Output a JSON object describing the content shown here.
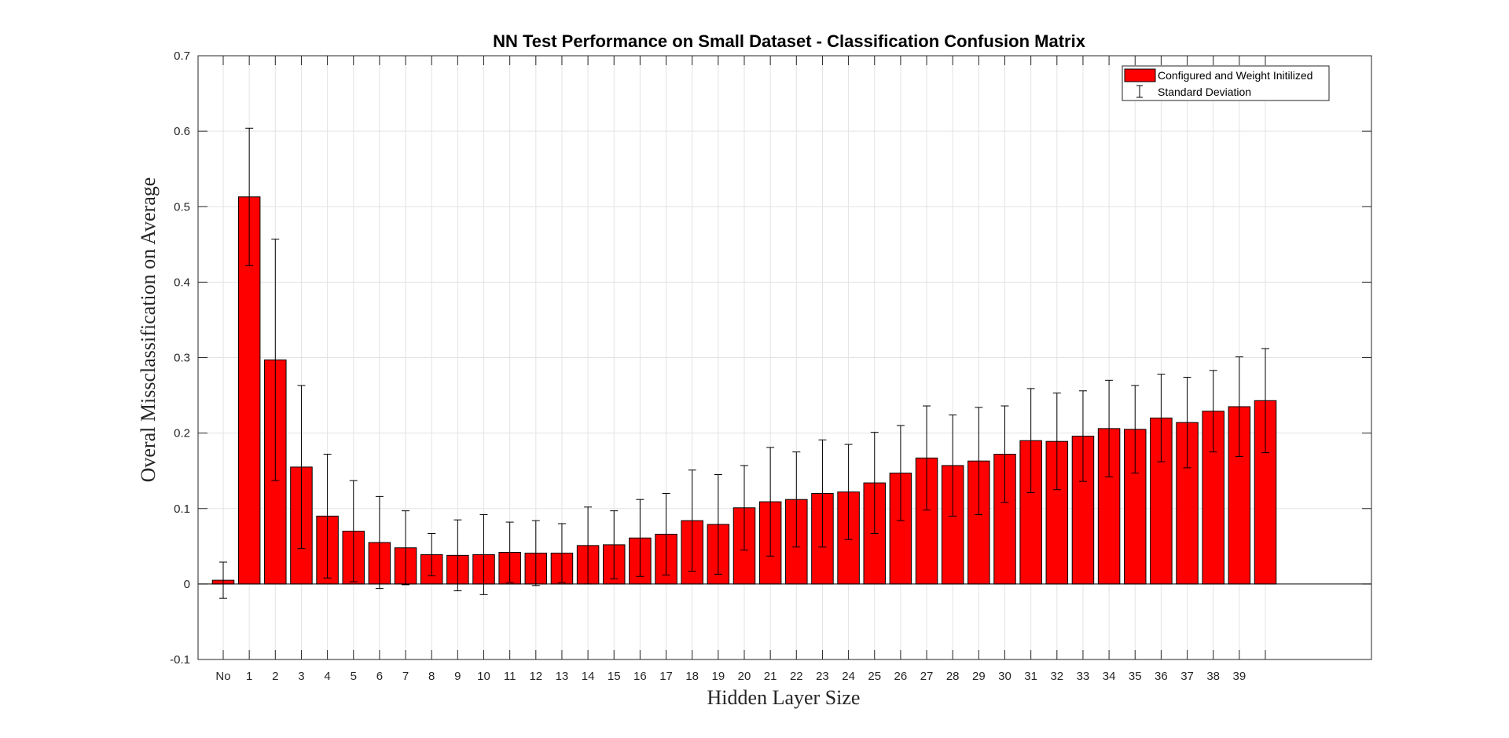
{
  "chart_data": {
    "type": "bar",
    "title": "NN Test Performance on Small Dataset - Classification Confusion Matrix",
    "xlabel": "Hidden Layer Size",
    "ylabel": "Overal Missclassification on Average",
    "ylim": [
      -0.1,
      0.7
    ],
    "yticks": [
      "-0.1",
      "0",
      "0.1",
      "0.2",
      "0.3",
      "0.4",
      "0.5",
      "0.6",
      "0.7"
    ],
    "grid": true,
    "legend_position": "top-right",
    "bar_color": "#ff0000",
    "categories": [
      "No",
      "1",
      "2",
      "3",
      "4",
      "5",
      "6",
      "7",
      "8",
      "9",
      "10",
      "11",
      "12",
      "13",
      "14",
      "15",
      "16",
      "17",
      "18",
      "19",
      "20",
      "21",
      "22",
      "23",
      "24",
      "25",
      "26",
      "27",
      "28",
      "29",
      "30",
      "31",
      "32",
      "33",
      "34",
      "35",
      "36",
      "37",
      "38",
      "39",
      ""
    ],
    "series": [
      {
        "name": "Configured and Weight Initilized",
        "values": [
          0.005,
          0.513,
          0.297,
          0.155,
          0.09,
          0.07,
          0.055,
          0.048,
          0.039,
          0.038,
          0.039,
          0.042,
          0.041,
          0.041,
          0.051,
          0.052,
          0.061,
          0.066,
          0.084,
          0.079,
          0.101,
          0.109,
          0.112,
          0.12,
          0.122,
          0.134,
          0.147,
          0.167,
          0.157,
          0.163,
          0.172,
          0.19,
          0.189,
          0.196,
          0.206,
          0.205,
          0.22,
          0.214,
          0.229,
          0.235,
          0.243
        ],
        "errors": [
          0.024,
          0.091,
          0.16,
          0.108,
          0.082,
          0.067,
          0.061,
          0.049,
          0.028,
          0.047,
          0.053,
          0.04,
          0.043,
          0.039,
          0.051,
          0.045,
          0.051,
          0.054,
          0.067,
          0.066,
          0.056,
          0.072,
          0.063,
          0.071,
          0.063,
          0.067,
          0.063,
          0.069,
          0.067,
          0.071,
          0.064,
          0.069,
          0.064,
          0.06,
          0.064,
          0.058,
          0.058,
          0.06,
          0.054,
          0.066,
          0.069
        ]
      }
    ],
    "legend": {
      "bar_label": "Configured and Weight Initilized",
      "error_label": "Standard Deviation"
    }
  }
}
